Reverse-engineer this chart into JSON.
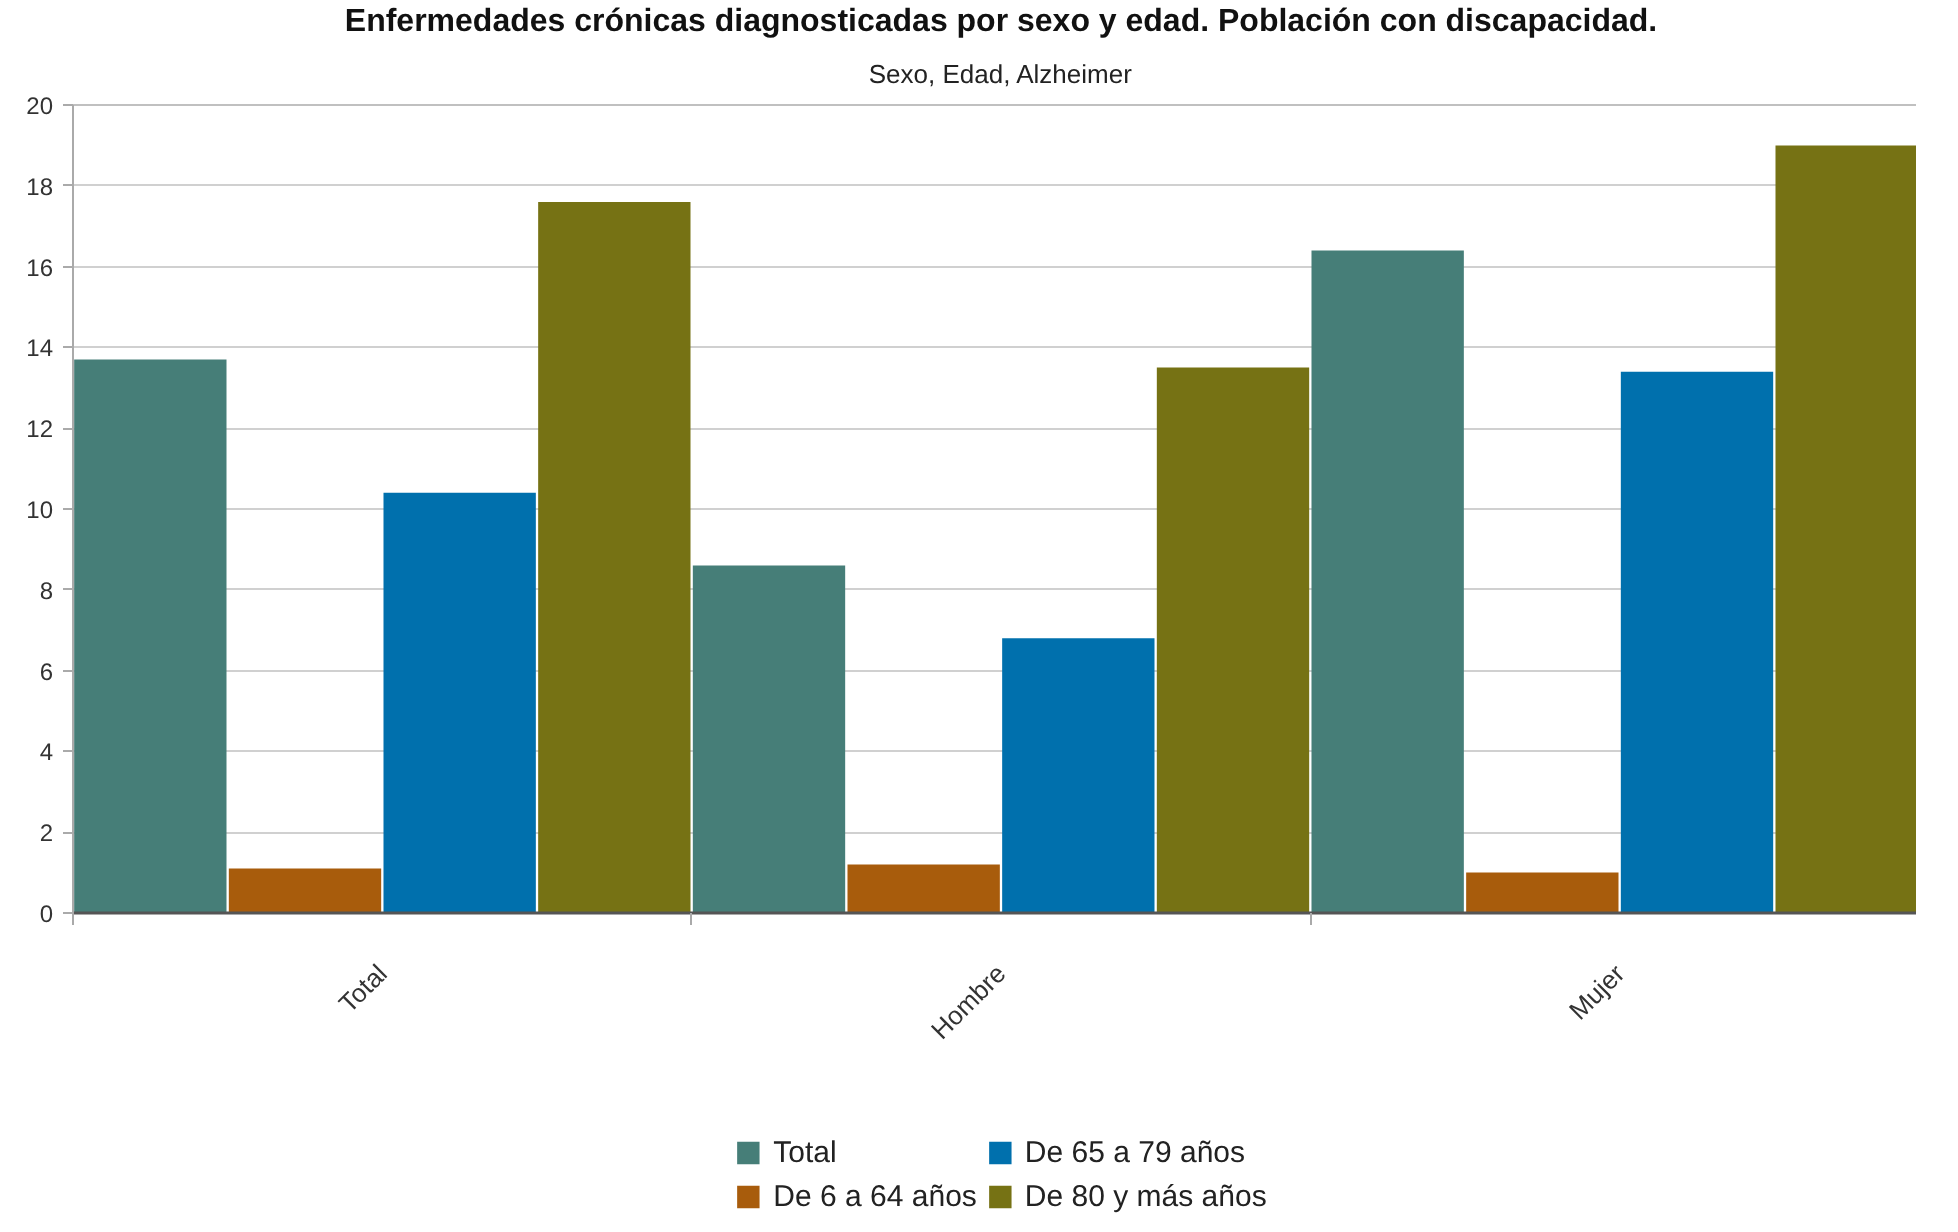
{
  "chart_data": {
    "type": "bar",
    "title": "Enfermedades crónicas diagnosticadas por sexo y edad. Población con discapacidad.",
    "subtitle": "Sexo, Edad, Alzheimer",
    "categories": [
      "Total",
      "Hombre",
      "Mujer"
    ],
    "series": [
      {
        "name": "Total",
        "color": "#467e78",
        "values": [
          13.7,
          8.6,
          16.4
        ]
      },
      {
        "name": "De 6 a 64 años",
        "color": "#a85c0c",
        "values": [
          1.1,
          1.2,
          1.0
        ]
      },
      {
        "name": "De 65 a 79 años",
        "color": "#0070ad",
        "values": [
          10.4,
          6.8,
          13.4
        ]
      },
      {
        "name": "De 80 y más años",
        "color": "#767214",
        "values": [
          17.6,
          13.5,
          19.0
        ]
      }
    ],
    "ylim": [
      0,
      20
    ],
    "yticks": [
      0,
      2,
      4,
      6,
      8,
      10,
      12,
      14,
      16,
      18,
      20
    ],
    "grid": "y",
    "legend": "bottom"
  }
}
